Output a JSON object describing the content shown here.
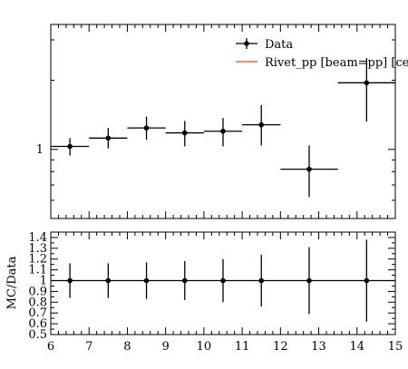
{
  "chart_data": [
    {
      "panel": "main",
      "type": "scatter",
      "yscale": "log",
      "xlim": [
        6,
        15
      ],
      "ylim": [
        0.5,
        3.5
      ],
      "yticks_labeled": [
        {
          "value": 1,
          "label": "1"
        }
      ],
      "legend": {
        "placement": "top-right",
        "entries": [
          {
            "name": "Data",
            "marker": "point-errorbar",
            "color": "#000000"
          },
          {
            "name": "Rivet_pp [beam=pp] [cent=",
            "marker": "line",
            "color": "#ee6644"
          }
        ]
      },
      "series": [
        {
          "name": "Data",
          "points": [
            {
              "x": 6.5,
              "xlo": 6,
              "xhi": 7,
              "y": 1.03,
              "ylo": 0.94,
              "yhi": 1.12
            },
            {
              "x": 7.5,
              "xlo": 7,
              "xhi": 8,
              "y": 1.12,
              "ylo": 1.01,
              "yhi": 1.24
            },
            {
              "x": 8.5,
              "xlo": 8,
              "xhi": 9,
              "y": 1.24,
              "ylo": 1.1,
              "yhi": 1.39
            },
            {
              "x": 9.5,
              "xlo": 9,
              "xhi": 10,
              "y": 1.18,
              "ylo": 1.03,
              "yhi": 1.33
            },
            {
              "x": 10.5,
              "xlo": 10,
              "xhi": 11,
              "y": 1.2,
              "ylo": 1.03,
              "yhi": 1.37
            },
            {
              "x": 11.5,
              "xlo": 11,
              "xhi": 12,
              "y": 1.28,
              "ylo": 1.04,
              "yhi": 1.56
            },
            {
              "x": 12.75,
              "xlo": 12,
              "xhi": 13.5,
              "y": 0.82,
              "ylo": 0.62,
              "yhi": 1.04
            },
            {
              "x": 14.25,
              "xlo": 13.5,
              "xhi": 15,
              "y": 1.95,
              "ylo": 1.32,
              "yhi": 2.5
            }
          ]
        }
      ]
    },
    {
      "panel": "ratio",
      "type": "scatter",
      "ylabel": "MC/Data",
      "xlim": [
        6,
        15
      ],
      "ylim": [
        0.5,
        1.45
      ],
      "xticks": [
        6,
        7,
        8,
        9,
        10,
        11,
        12,
        13,
        14,
        15
      ],
      "xtick_labels": [
        "6",
        "7",
        "8",
        "9",
        "10",
        "11",
        "12",
        "13",
        "14",
        "15"
      ],
      "yticks": [
        0.5,
        0.6,
        0.7,
        0.8,
        0.9,
        1,
        1.1,
        1.2,
        1.3,
        1.4
      ],
      "ytick_labels": [
        "0.5",
        "0.6",
        "0.7",
        "0.8",
        "0.9",
        "1",
        "1.1",
        "1.2",
        "1.3",
        "1.4"
      ],
      "series": [
        {
          "name": "Data",
          "points": [
            {
              "x": 6.5,
              "xlo": 6,
              "xhi": 7,
              "y": 1,
              "ylo": 0.84,
              "yhi": 1.16
            },
            {
              "x": 7.5,
              "xlo": 7,
              "xhi": 8,
              "y": 1,
              "ylo": 0.84,
              "yhi": 1.16
            },
            {
              "x": 8.5,
              "xlo": 8,
              "xhi": 9,
              "y": 1,
              "ylo": 0.83,
              "yhi": 1.17
            },
            {
              "x": 9.5,
              "xlo": 9,
              "xhi": 10,
              "y": 1,
              "ylo": 0.82,
              "yhi": 1.18
            },
            {
              "x": 10.5,
              "xlo": 10,
              "xhi": 11,
              "y": 1,
              "ylo": 0.8,
              "yhi": 1.2
            },
            {
              "x": 11.5,
              "xlo": 11,
              "xhi": 12,
              "y": 1,
              "ylo": 0.76,
              "yhi": 1.24
            },
            {
              "x": 12.75,
              "xlo": 12,
              "xhi": 13.5,
              "y": 1,
              "ylo": 0.69,
              "yhi": 1.31
            },
            {
              "x": 14.25,
              "xlo": 13.5,
              "xhi": 15,
              "y": 1,
              "ylo": 0.62,
              "yhi": 1.38
            }
          ]
        }
      ]
    }
  ]
}
